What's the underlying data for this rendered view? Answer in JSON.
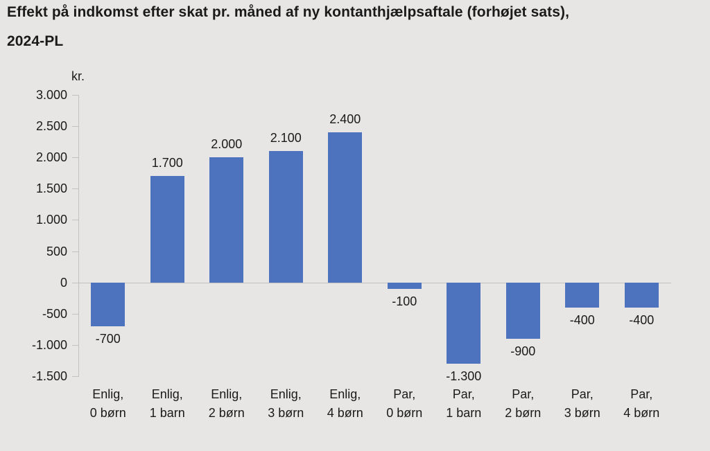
{
  "page": {
    "background_color": "#E7E6E4",
    "text_color": "#1A1A1A"
  },
  "chart_data": {
    "type": "bar",
    "title": "Effekt på indkomst efter skat pr. måned af ny kontanthjælpsaftale (forhøjet sats), 2024-PL",
    "title_lines": [
      "Effekt på indkomst efter skat pr. måned af ny kontanthjælpsaftale (forhøjet sats),",
      "2024-PL"
    ],
    "unit_label": "kr.",
    "xlabel": "",
    "ylabel": "kr.",
    "categories": [
      "Enlig,\n0 børn",
      "Enlig,\n1 barn",
      "Enlig,\n2 børn",
      "Enlig,\n3 børn",
      "Enlig,\n4 børn",
      "Par,\n0 børn",
      "Par,\n1 barn",
      "Par,\n2 børn",
      "Par,\n3 børn",
      "Par,\n4 børn"
    ],
    "values": [
      -700,
      1700,
      2000,
      2100,
      2400,
      -100,
      -1300,
      -900,
      -400,
      -400
    ],
    "value_labels": [
      "-700",
      "1.700",
      "2.000",
      "2.100",
      "2.400",
      "-100",
      "-1.300",
      "-900",
      "-400",
      "-400"
    ],
    "y_ticks": [
      {
        "label": "3.000",
        "value": 3000
      },
      {
        "label": "2.500",
        "value": 2500
      },
      {
        "label": "2.000",
        "value": 2000
      },
      {
        "label": "1.500",
        "value": 1500
      },
      {
        "label": "1.000",
        "value": 1000
      },
      {
        "label": "500",
        "value": 500
      },
      {
        "label": "0",
        "value": 0
      },
      {
        "label": "-500",
        "value": -500
      },
      {
        "label": "-1.000",
        "value": -1000
      },
      {
        "label": "-1.500",
        "value": -1500
      }
    ],
    "ylim": [
      -1500,
      3000
    ],
    "grid": "zero-baseline-only",
    "legend": "none",
    "bar_color": "#4D73BE",
    "axis_color": "#C2C1BE"
  }
}
